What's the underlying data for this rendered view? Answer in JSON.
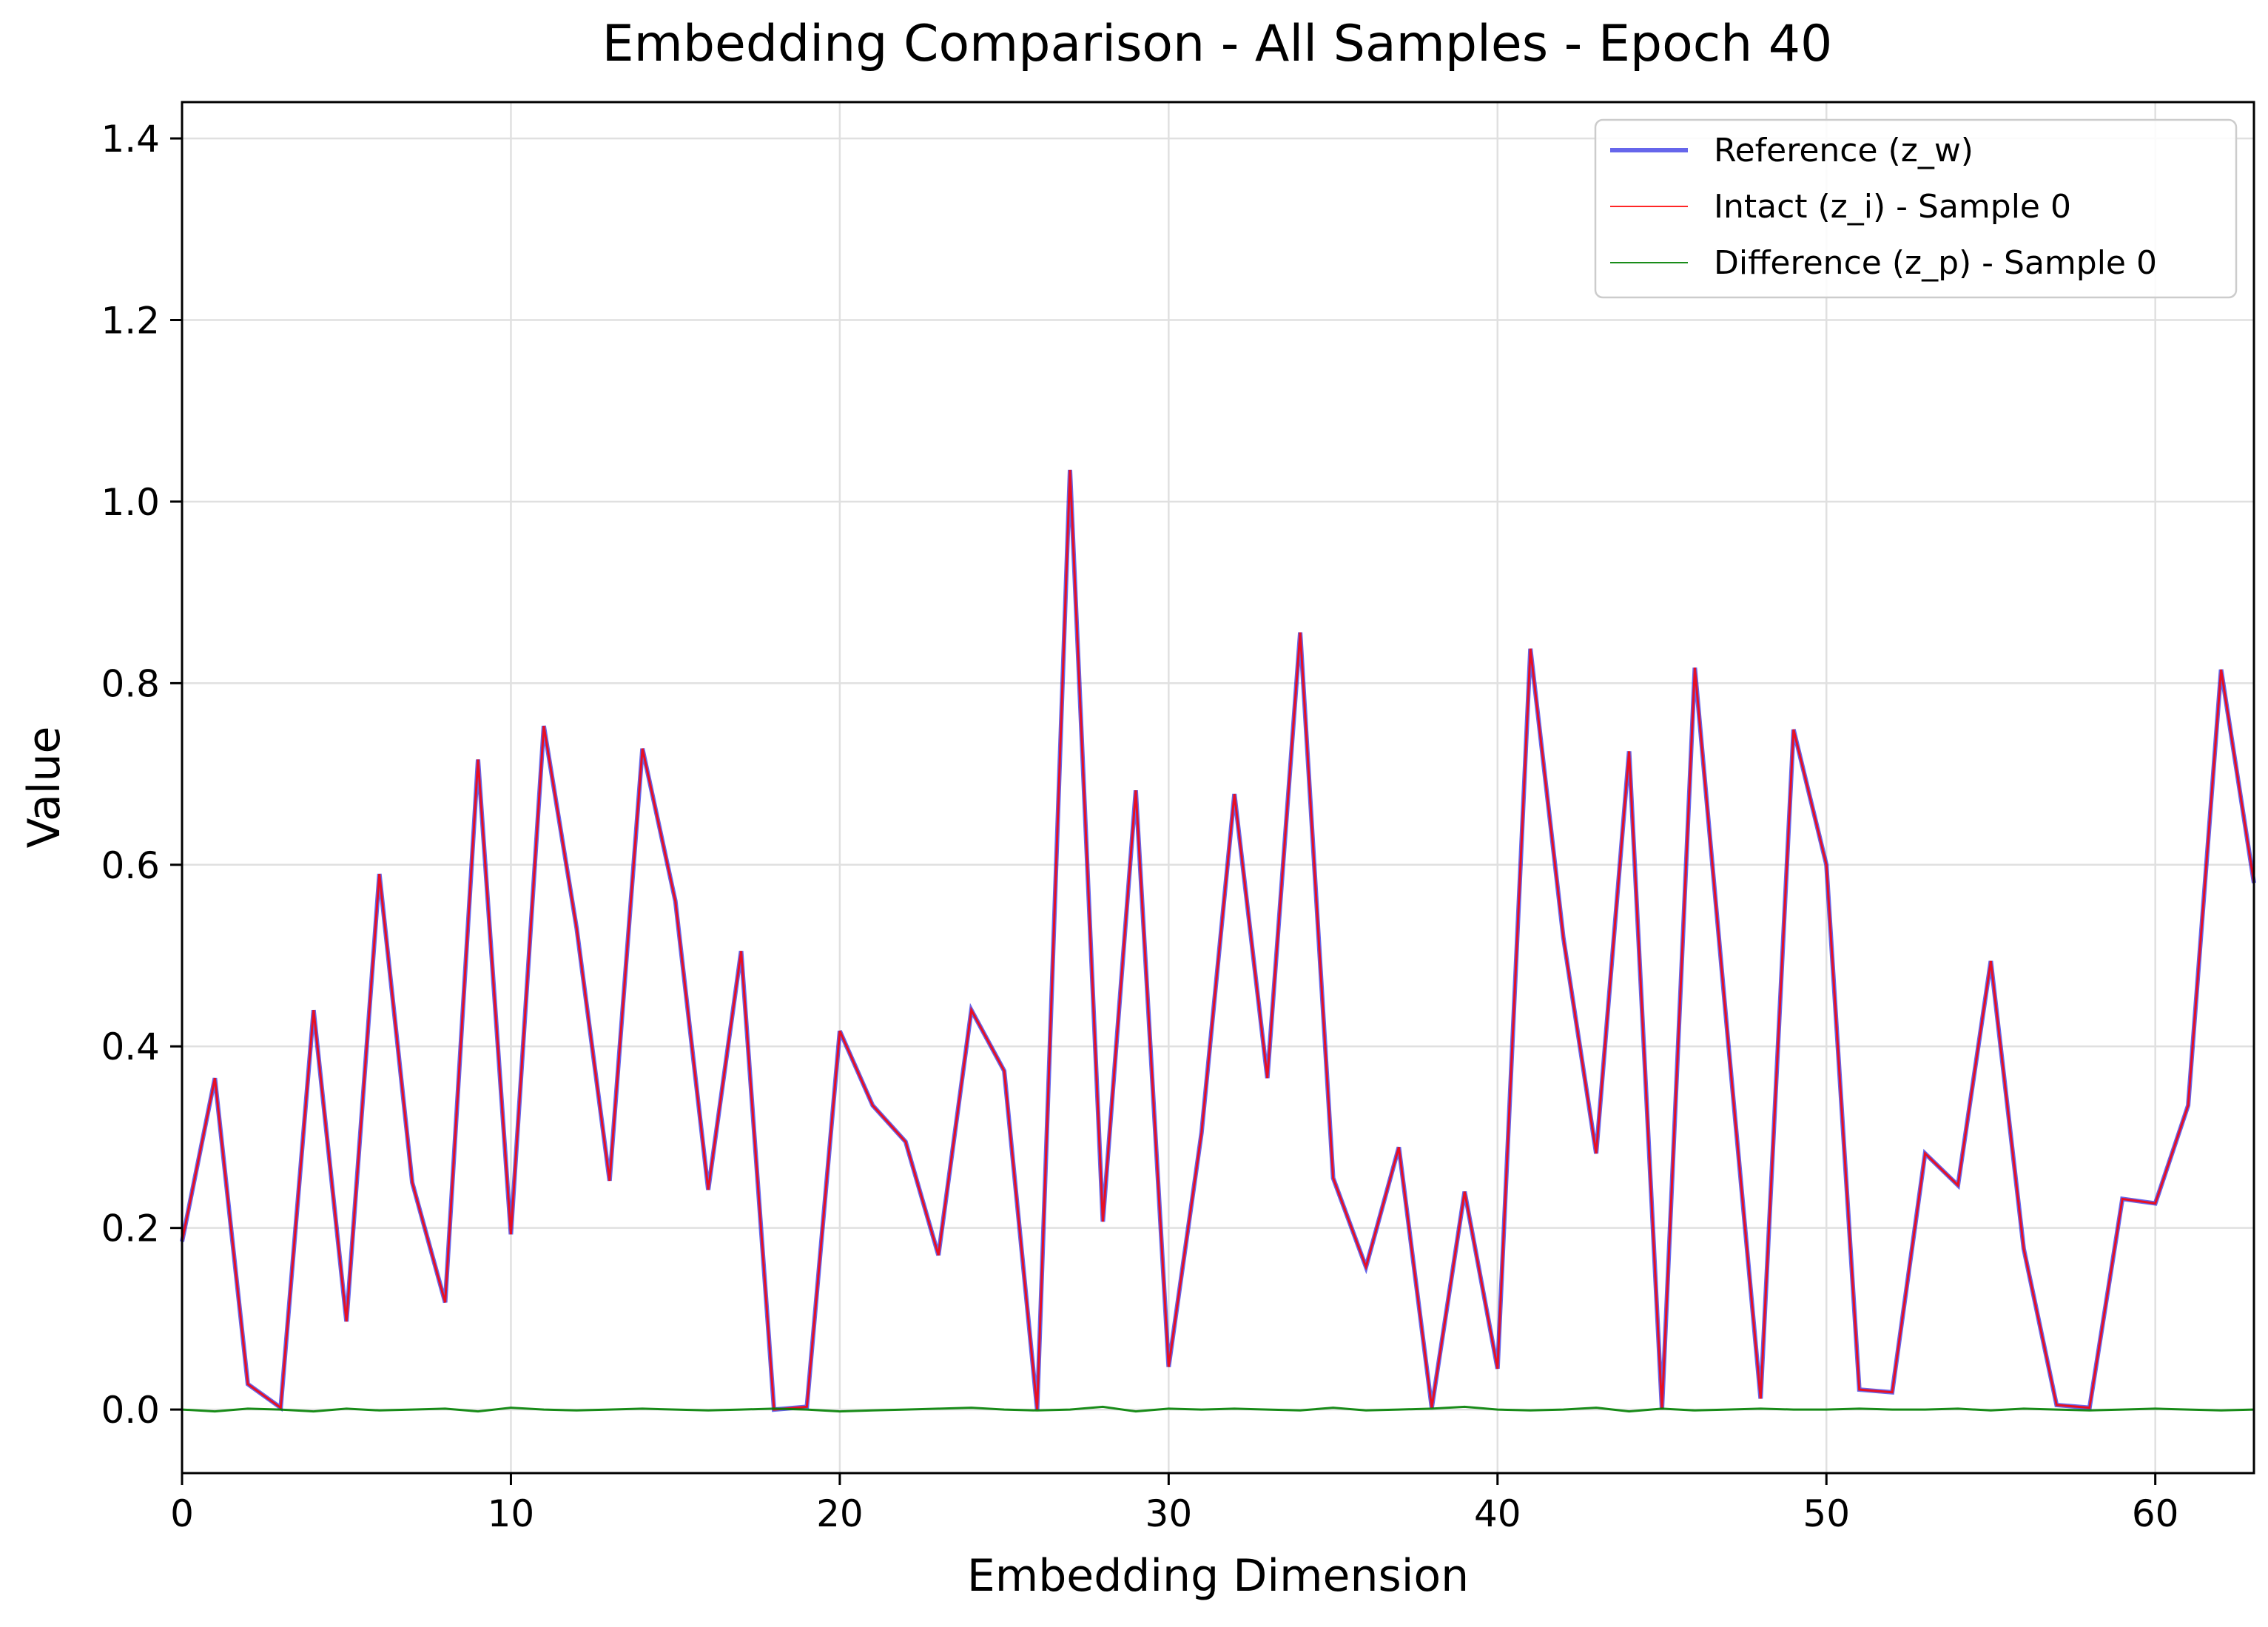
{
  "chart_data": {
    "type": "line",
    "title": "Embedding Comparison - All Samples - Epoch 40",
    "xlabel": "Embedding Dimension",
    "ylabel": "Value",
    "xlim": [
      0,
      63
    ],
    "ylim": [
      -0.07,
      1.44
    ],
    "xticks": [
      0,
      10,
      20,
      30,
      40,
      50,
      60
    ],
    "xtick_labels": [
      "0",
      "10",
      "20",
      "30",
      "40",
      "50",
      "60"
    ],
    "yticks": [
      0.0,
      0.2,
      0.4,
      0.6,
      0.8,
      1.0,
      1.2,
      1.4
    ],
    "ytick_labels": [
      "0.0",
      "0.2",
      "0.4",
      "0.6",
      "0.8",
      "1.0",
      "1.2",
      "1.4"
    ],
    "grid": true,
    "legend_position": "top-right",
    "x": [
      0,
      1,
      2,
      3,
      4,
      5,
      6,
      7,
      8,
      9,
      10,
      11,
      12,
      13,
      14,
      15,
      16,
      17,
      18,
      19,
      20,
      21,
      22,
      23,
      24,
      25,
      26,
      27,
      28,
      29,
      30,
      31,
      32,
      33,
      34,
      35,
      36,
      37,
      38,
      39,
      40,
      41,
      42,
      43,
      44,
      45,
      46,
      47,
      48,
      49,
      50,
      51,
      52,
      53,
      54,
      55,
      56,
      57,
      58,
      59,
      60,
      61,
      62,
      63
    ],
    "series": [
      {
        "name": "Reference (z_w)",
        "color": "#0000dd",
        "values": [
          0.185,
          0.365,
          0.028,
          0.002,
          0.44,
          0.097,
          0.59,
          0.25,
          0.118,
          0.716,
          0.193,
          0.753,
          0.53,
          0.252,
          0.728,
          0.56,
          0.242,
          0.505,
          0.0,
          0.003,
          0.417,
          0.335,
          0.295,
          0.17,
          0.44,
          0.373,
          0.0,
          1.035,
          0.207,
          0.682,
          0.047,
          0.305,
          0.678,
          0.365,
          0.856,
          0.255,
          0.157,
          0.289,
          0.002,
          0.24,
          0.045,
          0.838,
          0.52,
          0.282,
          0.725,
          0.0,
          0.817,
          0.41,
          0.012,
          0.749,
          0.6,
          0.022,
          0.019,
          0.282,
          0.247,
          0.494,
          0.177,
          0.005,
          0.002,
          0.232,
          0.227,
          0.335,
          0.815,
          0.58
        ]
      },
      {
        "name": "Intact (z_i) - Sample 0",
        "color": "#ff0000",
        "values": [
          0.185,
          0.365,
          0.028,
          0.002,
          0.44,
          0.097,
          0.59,
          0.25,
          0.118,
          0.716,
          0.193,
          0.753,
          0.53,
          0.252,
          0.728,
          0.56,
          0.242,
          0.505,
          0.0,
          0.003,
          0.417,
          0.335,
          0.295,
          0.17,
          0.44,
          0.373,
          0.0,
          1.035,
          0.207,
          0.682,
          0.047,
          0.305,
          0.678,
          0.365,
          0.856,
          0.255,
          0.157,
          0.289,
          0.002,
          0.24,
          0.045,
          0.838,
          0.52,
          0.282,
          0.725,
          0.0,
          0.817,
          0.41,
          0.012,
          0.749,
          0.6,
          0.022,
          0.019,
          0.282,
          0.247,
          0.494,
          0.177,
          0.005,
          0.002,
          0.232,
          0.227,
          0.335,
          0.815,
          0.58
        ]
      },
      {
        "name": "Difference (z_p) - Sample 0",
        "color": "#008000",
        "values": [
          0.0,
          -0.002,
          0.001,
          0.0,
          -0.002,
          0.001,
          -0.001,
          0.0,
          0.001,
          -0.002,
          0.002,
          0.0,
          -0.001,
          0.0,
          0.001,
          0.0,
          -0.001,
          0.0,
          0.001,
          0.0,
          -0.002,
          -0.001,
          0.0,
          0.001,
          0.002,
          0.0,
          -0.001,
          0.0,
          0.003,
          -0.002,
          0.001,
          0.0,
          0.001,
          0.0,
          -0.001,
          0.002,
          -0.001,
          0.0,
          0.001,
          0.003,
          0.0,
          -0.001,
          0.0,
          0.002,
          -0.002,
          0.001,
          -0.001,
          0.0,
          0.001,
          0.0,
          0.0,
          0.001,
          0.0,
          0.0,
          0.001,
          -0.001,
          0.001,
          0.0,
          -0.001,
          0.0,
          0.001,
          0.0,
          -0.001,
          0.0
        ]
      }
    ]
  }
}
